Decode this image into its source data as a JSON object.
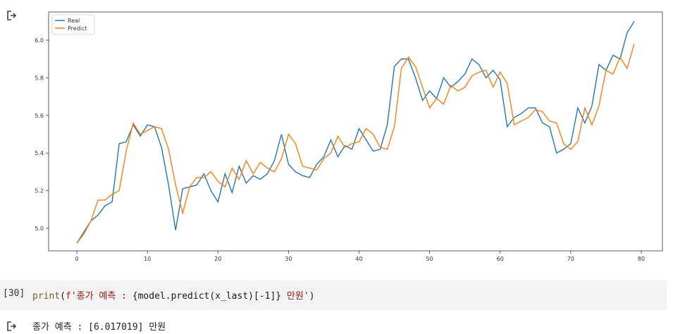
{
  "cell": {
    "prompt": "[30]",
    "code": {
      "fn": "print",
      "open": "(",
      "str_prefix": "f'종가 예측 : ",
      "expr": "{model.predict(x_last)[-1]}",
      "str_suffix": " 만원'",
      "close": ")"
    }
  },
  "output": {
    "text": "종가 예측 : [6.017019] 만원"
  },
  "icons": {
    "output_top": "output-arrow-icon",
    "output_bottom": "output-arrow-icon"
  },
  "chart_data": {
    "type": "line",
    "xlim": [
      -4,
      83
    ],
    "ylim": [
      4.88,
      6.15
    ],
    "xticks": [
      0,
      10,
      20,
      30,
      40,
      50,
      60,
      70,
      80
    ],
    "yticks": [
      5.0,
      5.2,
      5.4,
      5.6,
      5.8,
      6.0
    ],
    "legend": "top-left",
    "series": [
      {
        "name": "Real",
        "color": "#1f77b4",
        "values": [
          4.92,
          4.98,
          5.04,
          5.07,
          5.12,
          5.14,
          5.45,
          5.46,
          5.55,
          5.49,
          5.55,
          5.54,
          5.43,
          5.23,
          4.99,
          5.21,
          5.22,
          5.23,
          5.29,
          5.2,
          5.14,
          5.29,
          5.19,
          5.33,
          5.24,
          5.28,
          5.26,
          5.29,
          5.36,
          5.5,
          5.34,
          5.3,
          5.28,
          5.27,
          5.34,
          5.38,
          5.47,
          5.38,
          5.44,
          5.42,
          5.53,
          5.47,
          5.41,
          5.42,
          5.55,
          5.86,
          5.9,
          5.9,
          5.8,
          5.68,
          5.73,
          5.69,
          5.8,
          5.75,
          5.78,
          5.82,
          5.9,
          5.87,
          5.8,
          5.84,
          5.79,
          5.54,
          5.59,
          5.61,
          5.64,
          5.64,
          5.56,
          5.54,
          5.4,
          5.42,
          5.45,
          5.64,
          5.56,
          5.65,
          5.87,
          5.84,
          5.92,
          5.9,
          6.04,
          6.1
        ]
      },
      {
        "name": "Predict",
        "color": "#ff7f0e",
        "values": [
          4.92,
          4.97,
          5.04,
          5.15,
          5.15,
          5.18,
          5.2,
          5.41,
          5.56,
          5.5,
          5.52,
          5.54,
          5.53,
          5.42,
          5.23,
          5.08,
          5.22,
          5.27,
          5.27,
          5.3,
          5.25,
          5.22,
          5.32,
          5.26,
          5.36,
          5.29,
          5.35,
          5.32,
          5.3,
          5.37,
          5.5,
          5.45,
          5.33,
          5.32,
          5.31,
          5.37,
          5.4,
          5.49,
          5.43,
          5.45,
          5.46,
          5.53,
          5.5,
          5.43,
          5.42,
          5.54,
          5.85,
          5.91,
          5.86,
          5.75,
          5.64,
          5.69,
          5.66,
          5.76,
          5.73,
          5.75,
          5.81,
          5.83,
          5.84,
          5.75,
          5.83,
          5.77,
          5.55,
          5.57,
          5.59,
          5.63,
          5.62,
          5.57,
          5.56,
          5.45,
          5.42,
          5.46,
          5.64,
          5.55,
          5.65,
          5.84,
          5.82,
          5.91,
          5.85,
          5.98
        ]
      }
    ]
  }
}
